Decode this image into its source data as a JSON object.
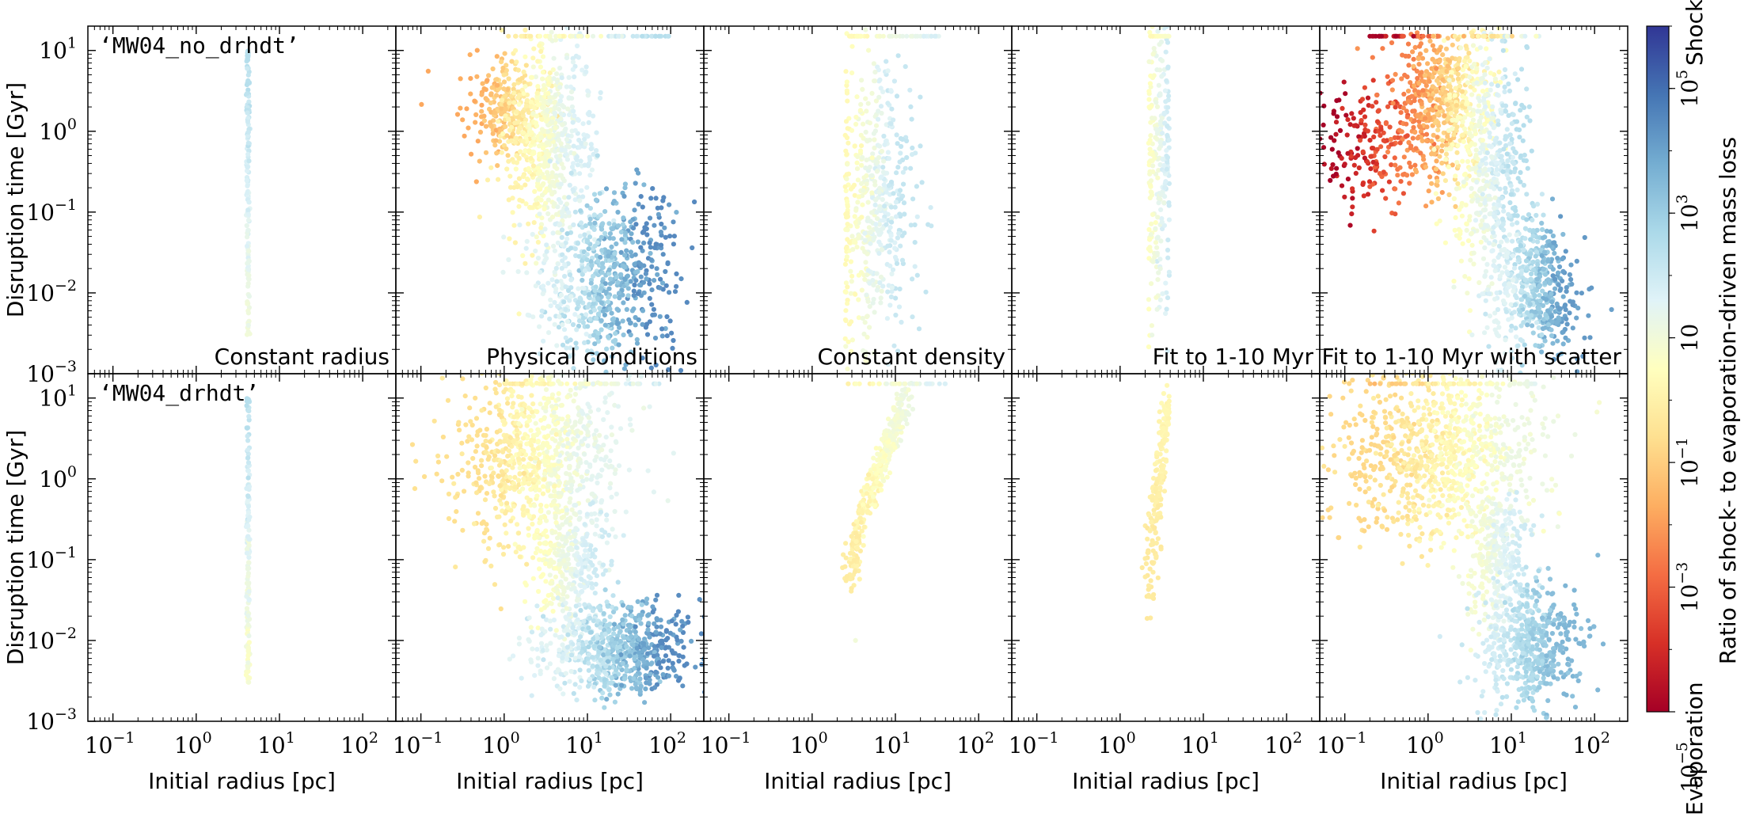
{
  "chart_data": {
    "type": "scatter",
    "layout": {
      "rows": 2,
      "cols": 5,
      "shared_axes": true
    },
    "xlabel": "Initial radius [pc]",
    "ylabel": "Disruption time [Gyr]",
    "xscale": "log",
    "yscale": "log",
    "xlim": [
      0.05,
      250
    ],
    "ylim": [
      0.001,
      20
    ],
    "x_ticks": [
      {
        "value": 0.1,
        "base": "10",
        "exp": "−1"
      },
      {
        "value": 1,
        "base": "10",
        "exp": "0"
      },
      {
        "value": 10,
        "base": "10",
        "exp": "1"
      },
      {
        "value": 100,
        "base": "10",
        "exp": "2"
      }
    ],
    "y_ticks": [
      {
        "value": 0.001,
        "base": "10",
        "exp": "−3"
      },
      {
        "value": 0.01,
        "base": "10",
        "exp": "−2"
      },
      {
        "value": 0.1,
        "base": "10",
        "exp": "−1"
      },
      {
        "value": 1,
        "base": "10",
        "exp": "0"
      },
      {
        "value": 10,
        "base": "10",
        "exp": "1"
      }
    ],
    "rows": [
      {
        "label": "‘MW04_no_drhdt’"
      },
      {
        "label": "‘MW04_drhdt’"
      }
    ],
    "columns": [
      {
        "title": "Constant radius"
      },
      {
        "title": "Physical conditions"
      },
      {
        "title": "Constant density"
      },
      {
        "title": "Fit to 1-10 Myr"
      },
      {
        "title": "Fit to 1-10 Myr with scatter"
      }
    ],
    "panels": [
      {
        "row": 0,
        "col": 0,
        "regions": [
          {
            "x": [
              4.2,
              4.2
            ],
            "y": [
              0.003,
              10
            ],
            "points": 150,
            "c_lo": 1,
            "c_hi": 2.5,
            "spread_x": 0.01
          }
        ]
      },
      {
        "row": 0,
        "col": 1,
        "regions": [
          {
            "x": [
              0.45,
              2.2
            ],
            "y": [
              0.7,
              4.5
            ],
            "points": 260,
            "c_lo": -1.8,
            "c_hi": 0.0,
            "spread_x": 0.3,
            "spread_y": 0.35
          },
          {
            "x": [
              1.5,
              8.0
            ],
            "y": [
              0.1,
              5.0
            ],
            "points": 620,
            "c_lo": 0.0,
            "c_hi": 1.8,
            "spread_x": 0.35,
            "spread_y": 0.55
          },
          {
            "x": [
              4.0,
              60.0
            ],
            "y": [
              0.0025,
              0.1
            ],
            "points": 700,
            "c_lo": 1.5,
            "c_hi": 4.5,
            "spread_x": 0.45,
            "spread_y": 0.5
          },
          {
            "x": [
              1.0,
              100.0
            ],
            "y": [
              15,
              15
            ],
            "points": 70,
            "c_lo": -0.5,
            "c_hi": 2.5,
            "spread_x": 0.0,
            "spread_y": 0.0,
            "band": true
          }
        ]
      },
      {
        "row": 0,
        "col": 2,
        "regions": [
          {
            "x": [
              2.5,
              12.0
            ],
            "y": [
              0.007,
              3.0
            ],
            "points": 520,
            "c_lo": 0.3,
            "c_hi": 2.2,
            "spread_x": 0.3,
            "spread_y": 0.8,
            "left_edge": 2.5
          },
          {
            "x": [
              2.6,
              35.0
            ],
            "y": [
              15,
              15
            ],
            "points": 50,
            "c_lo": 0.2,
            "c_hi": 1.8,
            "spread_x": 0.0,
            "spread_y": 0.0,
            "band": true
          }
        ]
      },
      {
        "row": 0,
        "col": 3,
        "regions": [
          {
            "x": [
              2.2,
              3.9
            ],
            "y": [
              0.015,
              10.0
            ],
            "points": 260,
            "c_lo": 0.5,
            "c_hi": 2.0,
            "spread_x": 0.08,
            "spread_y": 0.75,
            "left_edge": 2.2,
            "right_edge": 3.9
          },
          {
            "x": [
              2.3,
              3.9
            ],
            "y": [
              15,
              15
            ],
            "points": 20,
            "c_lo": 0.3,
            "c_hi": 0.8,
            "spread_x": 0.0,
            "spread_y": 0.0,
            "band": true
          }
        ]
      },
      {
        "row": 0,
        "col": 4,
        "regions": [
          {
            "x": [
              0.07,
              0.9
            ],
            "y": [
              0.2,
              3.0
            ],
            "points": 240,
            "c_lo": -5.0,
            "c_hi": -2.0,
            "spread_x": 0.3,
            "spread_y": 0.3
          },
          {
            "x": [
              0.6,
              4.0
            ],
            "y": [
              0.5,
              12.0
            ],
            "points": 520,
            "c_lo": -2.5,
            "c_hi": 0.5,
            "spread_x": 0.3,
            "spread_y": 0.4
          },
          {
            "x": [
              2.5,
              12.0
            ],
            "y": [
              0.03,
              3.0
            ],
            "points": 520,
            "c_lo": 0.5,
            "c_hi": 2.5,
            "spread_x": 0.3,
            "spread_y": 0.6
          },
          {
            "x": [
              8.0,
              45.0
            ],
            "y": [
              0.0025,
              0.05
            ],
            "points": 520,
            "c_lo": 1.5,
            "c_hi": 4.2,
            "spread_x": 0.3,
            "spread_y": 0.45
          },
          {
            "x": [
              0.2,
              22.0
            ],
            "y": [
              15,
              15
            ],
            "points": 90,
            "c_lo": -5.0,
            "c_hi": 2.0,
            "spread_x": 0.0,
            "spread_y": 0.0,
            "band": true
          }
        ]
      },
      {
        "row": 1,
        "col": 0,
        "regions": [
          {
            "x": [
              4.2,
              4.2
            ],
            "y": [
              0.003,
              10
            ],
            "points": 150,
            "c_lo": 0.6,
            "c_hi": 2.5,
            "spread_x": 0.01
          }
        ]
      },
      {
        "row": 1,
        "col": 1,
        "regions": [
          {
            "x": [
              0.5,
              12.0
            ],
            "y": [
              0.25,
              12.0
            ],
            "points": 900,
            "c_lo": -0.6,
            "c_hi": 1.5,
            "spread_x": 0.55,
            "spread_y": 0.4
          },
          {
            "x": [
              3.0,
              12.0
            ],
            "y": [
              0.02,
              0.3
            ],
            "points": 300,
            "c_lo": 0.5,
            "c_hi": 2.0,
            "spread_x": 0.3,
            "spread_y": 0.4
          },
          {
            "x": [
              5.0,
              100.0
            ],
            "y": [
              0.003,
              0.02
            ],
            "points": 700,
            "c_lo": 1.5,
            "c_hi": 4.5,
            "spread_x": 0.45,
            "spread_y": 0.3
          },
          {
            "x": [
              1.0,
              90.0
            ],
            "y": [
              15,
              15
            ],
            "points": 60,
            "c_lo": -0.3,
            "c_hi": 2.0,
            "spread_x": 0.0,
            "spread_y": 0.0,
            "band": true
          }
        ]
      },
      {
        "row": 1,
        "col": 2,
        "regions": [
          {
            "x": [
              2.8,
              14.0
            ],
            "y": [
              0.05,
              10.0
            ],
            "points": 380,
            "c_lo": -0.2,
            "c_hi": 1.2,
            "diagonal": true
          },
          {
            "x": [
              3.3,
              3.3
            ],
            "y": [
              0.01,
              0.01
            ],
            "points": 1,
            "c_lo": 1.0,
            "c_hi": 1.0
          },
          {
            "x": [
              2.6,
              40.0
            ],
            "y": [
              15,
              15
            ],
            "points": 40,
            "c_lo": 0.0,
            "c_hi": 1.8,
            "spread_x": 0.0,
            "spread_y": 0.0,
            "band": true
          }
        ]
      },
      {
        "row": 1,
        "col": 3,
        "regions": [
          {
            "x": [
              2.2,
              3.9
            ],
            "y": [
              0.02,
              10.0
            ],
            "points": 200,
            "c_lo": -0.3,
            "c_hi": 0.3,
            "diagonal": true,
            "right_edge": 3.9
          }
        ]
      },
      {
        "row": 1,
        "col": 4,
        "regions": [
          {
            "x": [
              0.2,
              12.0
            ],
            "y": [
              0.3,
              12.0
            ],
            "points": 950,
            "c_lo": -0.8,
            "c_hi": 1.2,
            "spread_x": 0.6,
            "spread_y": 0.4
          },
          {
            "x": [
              4.0,
              12.0
            ],
            "y": [
              0.02,
              0.4
            ],
            "points": 300,
            "c_lo": 0.8,
            "c_hi": 2.0,
            "spread_x": 0.3,
            "spread_y": 0.4
          },
          {
            "x": [
              6.0,
              45.0
            ],
            "y": [
              0.0025,
              0.03
            ],
            "points": 520,
            "c_lo": 1.8,
            "c_hi": 3.6,
            "spread_x": 0.35,
            "spread_y": 0.35
          },
          {
            "x": [
              0.2,
              20.0
            ],
            "y": [
              15,
              15
            ],
            "points": 70,
            "c_lo": -1.5,
            "c_hi": 1.5,
            "spread_x": 0.0,
            "spread_y": 0.0,
            "band": true
          }
        ]
      }
    ],
    "colorbar": {
      "label": "Ratio of shock- to evaporation-driven mass loss",
      "top_label": "Shock",
      "bottom_label": "Evaporation",
      "scale": "log",
      "range": [
        -5,
        6
      ],
      "colormap": "RdYlBu",
      "ticks": [
        {
          "value": 5,
          "base": "10",
          "exp": "5"
        },
        {
          "value": 3,
          "base": "10",
          "exp": "3"
        },
        {
          "value": 1,
          "base": "10",
          "exp": ""
        },
        {
          "value": -1,
          "base": "10",
          "exp": "−1"
        },
        {
          "value": -3,
          "base": "10",
          "exp": "−3"
        },
        {
          "value": -5,
          "base": "10",
          "exp": "−5"
        }
      ]
    }
  }
}
